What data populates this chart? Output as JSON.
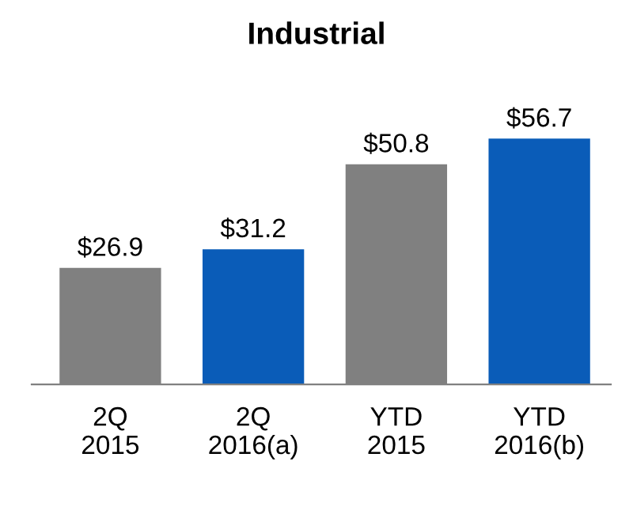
{
  "chart_data": {
    "type": "bar",
    "title": "Industrial",
    "categories": [
      "2Q\n2015",
      "2Q\n2016(a)",
      "YTD\n2015",
      "YTD\n2016(b)"
    ],
    "values": [
      26.9,
      31.2,
      50.8,
      56.7
    ],
    "colors": [
      "#808080",
      "#0a5cb8",
      "#808080",
      "#0a5cb8"
    ],
    "value_labels": [
      "$26.9",
      "$31.2",
      "$50.8",
      "$56.7"
    ],
    "grid": false,
    "legend": false
  }
}
